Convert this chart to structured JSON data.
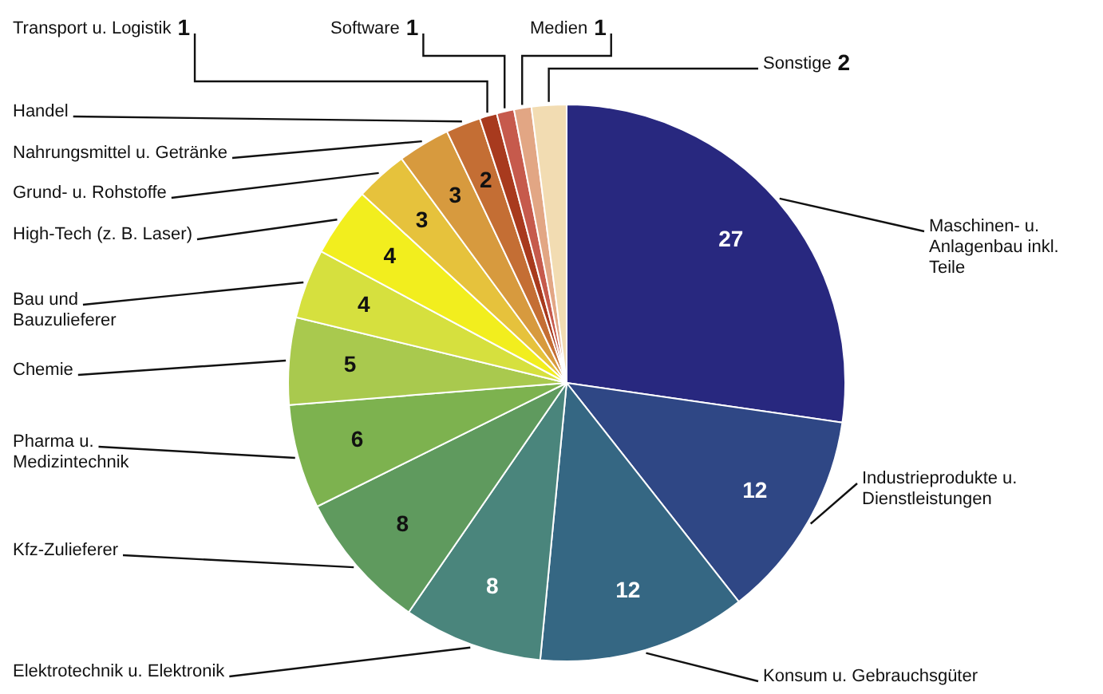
{
  "chart_data": {
    "type": "pie",
    "categories": [
      "Maschinen- u. Anlagenbau inkl. Teile",
      "Industrieprodukte u. Dienstleistungen",
      "Konsum u. Gebrauchsgüter",
      "Elektrotechnik u. Elektronik",
      "Kfz-Zulieferer",
      "Pharma u. Medizintechnik",
      "Chemie",
      "Bau und Bauzulieferer",
      "High-Tech (z. B. Laser)",
      "Grund- u. Rohstoffe",
      "Nahrungsmittel u. Getränke",
      "Handel",
      "Transport u. Logistik",
      "Software",
      "Medien",
      "Sonstige"
    ],
    "values": [
      27,
      12,
      12,
      8,
      8,
      6,
      5,
      4,
      4,
      3,
      3,
      2,
      1,
      1,
      1,
      2
    ],
    "colors": [
      "#28287f",
      "#2f4785",
      "#356783",
      "#4a857c",
      "#5f9a5e",
      "#7db24f",
      "#a9c94e",
      "#d6e03e",
      "#f2ee1e",
      "#e6c23c",
      "#d79a3e",
      "#c46e34",
      "#a83a1e",
      "#c65a4c",
      "#e2a684",
      "#f2dcb2"
    ],
    "data_labels": true,
    "legend": false
  }
}
